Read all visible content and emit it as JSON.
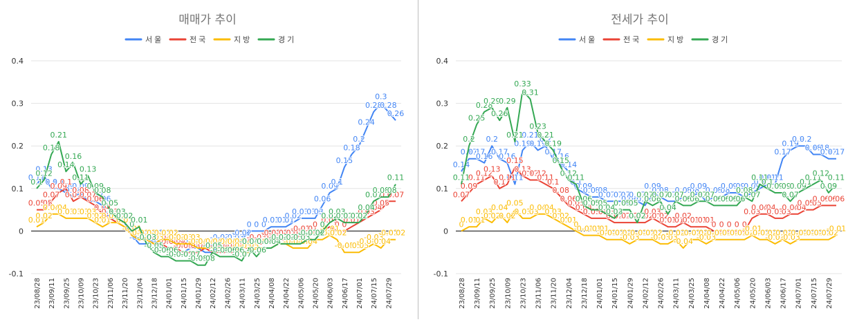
{
  "colors": {
    "seoul": "#4285F4",
    "national": "#EA4335",
    "regional": "#FBBC04",
    "gyeonggi": "#34A853",
    "grid": "#e3e3e3",
    "axis": "#333333",
    "title": "#757575"
  },
  "legend": {
    "seoul": "서울",
    "national": "전국",
    "regional": "지방",
    "gyeonggi": "경기"
  },
  "chart_data": [
    {
      "type": "line",
      "title": "매매가 추이",
      "ylim": [
        -0.1,
        0.4
      ],
      "yticks": [
        -0.1,
        0,
        0.1,
        0.2,
        0.3,
        0.4
      ],
      "x": [
        "23/08/28",
        "23/09/04",
        "23/09/11",
        "23/09/18",
        "23/09/25",
        "23/10/02",
        "23/10/09",
        "23/10/16",
        "23/10/23",
        "23/10/30",
        "23/11/06",
        "23/11/13",
        "23/11/20",
        "23/11/27",
        "23/12/04",
        "23/12/11",
        "23/12/18",
        "23/12/25",
        "24/01/01",
        "24/01/08",
        "24/01/15",
        "24/01/22",
        "24/01/29",
        "24/02/05",
        "24/02/12",
        "24/02/19",
        "24/02/26",
        "24/03/04",
        "24/03/11",
        "24/03/18",
        "24/03/25",
        "24/04/01",
        "24/04/08",
        "24/04/15",
        "24/04/22",
        "24/04/29",
        "24/05/06",
        "24/05/13",
        "24/05/20",
        "24/05/27",
        "24/06/03",
        "24/06/10",
        "24/06/17",
        "24/06/24",
        "24/07/01",
        "24/07/08",
        "24/07/15",
        "24/07/22",
        "24/07/29",
        "24/08/05"
      ],
      "xtick_labels": [
        "23/08/28",
        "23/09/11",
        "23/09/25",
        "23/10/09",
        "23/10/23",
        "23/11/06",
        "23/11/20",
        "23/12/04",
        "23/12/18",
        "24/01/01",
        "24/01/15",
        "24/01/29",
        "24/02/12",
        "24/02/26",
        "24/03/11",
        "24/03/25",
        "24/04/08",
        "24/04/22",
        "24/05/06",
        "24/05/20",
        "24/06/03",
        "24/06/17",
        "24/07/01",
        "24/07/15",
        "24/07/29"
      ],
      "series": [
        {
          "key": "seoul",
          "name": "서울",
          "values": [
            0.11,
            0.13,
            0.1,
            0.1,
            0.09,
            0.08,
            0.09,
            0.07,
            0.07,
            0.06,
            0.03,
            0.03,
            0.02,
            -0.01,
            -0.03,
            -0.03,
            -0.02,
            -0.04,
            -0.04,
            -0.04,
            -0.05,
            -0.04,
            -0.04,
            -0.05,
            -0.05,
            -0.03,
            -0.03,
            -0.03,
            -0.02,
            0,
            0,
            0,
            0.01,
            0.01,
            0.01,
            0.02,
            0.03,
            0.03,
            0.03,
            0.06,
            0.09,
            0.1,
            0.15,
            0.18,
            0.2,
            0.24,
            0.28,
            0.3,
            0.28,
            0.26
          ]
        },
        {
          "key": "national",
          "name": "전국",
          "values": [
            0.05,
            0.05,
            0.07,
            0.09,
            0.1,
            0.07,
            0.08,
            0.07,
            0.06,
            0.04,
            0.03,
            0.02,
            0.01,
            -0.01,
            -0.02,
            -0.02,
            -0.03,
            -0.03,
            -0.04,
            -0.04,
            -0.05,
            -0.05,
            -0.05,
            -0.04,
            -0.05,
            -0.05,
            -0.05,
            -0.05,
            -0.04,
            -0.04,
            -0.03,
            -0.03,
            -0.02,
            -0.02,
            -0.02,
            -0.02,
            -0.01,
            -0.01,
            0,
            0,
            0.01,
            0,
            0,
            0.01,
            0.02,
            0.03,
            0.04,
            0.05,
            0.07,
            0.07
          ]
        },
        {
          "key": "regional",
          "name": "지방",
          "values": [
            0.01,
            0.02,
            0.04,
            0.04,
            0.03,
            0.03,
            0.03,
            0.03,
            0.02,
            0.01,
            0.02,
            0.02,
            0.01,
            -0.01,
            -0.02,
            -0.02,
            -0.03,
            -0.02,
            -0.02,
            -0.03,
            -0.03,
            -0.03,
            -0.04,
            -0.04,
            -0.04,
            -0.04,
            -0.04,
            -0.04,
            -0.05,
            -0.05,
            -0.04,
            -0.04,
            -0.04,
            -0.03,
            -0.03,
            -0.04,
            -0.04,
            -0.04,
            -0.02,
            -0.02,
            -0.01,
            -0.02,
            -0.05,
            -0.05,
            -0.05,
            -0.04,
            -0.03,
            -0.04,
            -0.02,
            -0.02
          ]
        },
        {
          "key": "gyeonggi",
          "name": "경기",
          "values": [
            0.1,
            0.12,
            0.18,
            0.21,
            0.14,
            0.16,
            0.11,
            0.13,
            0.09,
            0.08,
            0.05,
            0.03,
            0.02,
            0,
            0.01,
            -0.03,
            -0.05,
            -0.06,
            -0.06,
            -0.07,
            -0.07,
            -0.07,
            -0.08,
            -0.08,
            -0.05,
            -0.06,
            -0.06,
            -0.06,
            -0.07,
            -0.04,
            -0.06,
            -0.04,
            -0.04,
            -0.03,
            -0.03,
            -0.03,
            -0.03,
            -0.02,
            -0.02,
            0,
            0.02,
            0.03,
            0.02,
            0.02,
            0.02,
            0.04,
            0.07,
            0.08,
            0.08,
            0.11
          ]
        }
      ]
    },
    {
      "type": "line",
      "title": "전세가 추이",
      "ylim": [
        -0.1,
        0.4
      ],
      "yticks": [
        -0.1,
        0,
        0.1,
        0.2,
        0.3,
        0.4
      ],
      "x": [
        "23/08/28",
        "23/09/04",
        "23/09/11",
        "23/09/18",
        "23/09/25",
        "23/10/02",
        "23/10/09",
        "23/10/16",
        "23/10/23",
        "23/10/30",
        "23/11/06",
        "23/11/13",
        "23/11/20",
        "23/11/27",
        "23/12/04",
        "23/12/11",
        "23/12/18",
        "23/12/25",
        "24/01/01",
        "24/01/08",
        "24/01/15",
        "24/01/22",
        "24/01/29",
        "24/02/05",
        "24/02/12",
        "24/02/19",
        "24/02/26",
        "24/03/04",
        "24/03/11",
        "24/03/18",
        "24/03/25",
        "24/04/01",
        "24/04/08",
        "24/04/15",
        "24/04/22",
        "24/04/29",
        "24/05/06",
        "24/05/13",
        "24/05/20",
        "24/05/27",
        "24/06/03",
        "24/06/10",
        "24/06/17",
        "24/06/24",
        "24/07/01",
        "24/07/08",
        "24/07/15",
        "24/07/22",
        "24/07/29",
        "24/08/05"
      ],
      "xtick_labels": [
        "23/08/28",
        "23/09/11",
        "23/09/25",
        "23/10/09",
        "23/10/23",
        "23/11/06",
        "23/11/20",
        "23/12/04",
        "23/12/18",
        "24/01/01",
        "24/01/15",
        "24/01/29",
        "24/02/12",
        "24/02/26",
        "24/03/11",
        "24/03/25",
        "24/04/08",
        "24/04/22",
        "24/05/06",
        "24/05/20",
        "24/06/03",
        "24/06/17",
        "24/07/01",
        "24/07/15",
        "24/07/29"
      ],
      "series": [
        {
          "key": "seoul",
          "name": "서울",
          "values": [
            0.14,
            0.17,
            0.17,
            0.16,
            0.2,
            0.17,
            0.16,
            0.11,
            0.19,
            0.21,
            0.19,
            0.2,
            0.17,
            0.16,
            0.14,
            0.1,
            0.09,
            0.08,
            0.08,
            0.07,
            0.07,
            0.07,
            0.06,
            0.07,
            0.06,
            0.09,
            0.08,
            0.07,
            0.07,
            0.08,
            0.08,
            0.09,
            0.07,
            0.08,
            0.08,
            0.09,
            0.09,
            0.08,
            0.09,
            0.1,
            0.11,
            0.11,
            0.17,
            0.19,
            0.2,
            0.2,
            0.18,
            0.18,
            0.17,
            0.17
          ]
        },
        {
          "key": "national",
          "name": "전국",
          "values": [
            0.07,
            0.09,
            0.11,
            0.12,
            0.13,
            0.1,
            0.11,
            0.15,
            0.13,
            0.12,
            0.12,
            0.11,
            0.1,
            0.08,
            0.06,
            0.05,
            0.04,
            0.03,
            0.03,
            0.03,
            0.02,
            0.02,
            0.02,
            0.02,
            0.02,
            0.03,
            0.02,
            0.01,
            0.01,
            0.02,
            0.01,
            0.01,
            0.01,
            0,
            0,
            0,
            0,
            0,
            0.03,
            0.04,
            0.04,
            0.03,
            0.03,
            0.04,
            0.04,
            0.05,
            0.05,
            0.06,
            0.06,
            0.06
          ]
        },
        {
          "key": "regional",
          "name": "지방",
          "values": [
            0,
            0.01,
            0.01,
            0.03,
            0.02,
            0.04,
            0.02,
            0.05,
            0.03,
            0.03,
            0.04,
            0.04,
            0.03,
            0.02,
            0.01,
            0,
            -0.01,
            -0.01,
            -0.01,
            -0.02,
            -0.02,
            -0.02,
            -0.03,
            -0.02,
            -0.02,
            -0.02,
            -0.03,
            -0.03,
            -0.02,
            -0.04,
            -0.02,
            -0.02,
            -0.03,
            -0.02,
            -0.02,
            -0.02,
            -0.02,
            -0.02,
            -0.01,
            -0.02,
            -0.02,
            -0.03,
            -0.02,
            -0.03,
            -0.02,
            -0.02,
            -0.02,
            -0.02,
            -0.02,
            -0.01
          ]
        },
        {
          "key": "gyeonggi",
          "name": "경기",
          "values": [
            0.11,
            0.2,
            0.25,
            0.28,
            0.29,
            0.26,
            0.29,
            0.21,
            0.33,
            0.31,
            0.23,
            0.21,
            0.19,
            0.15,
            0.12,
            0.11,
            0.06,
            0.05,
            0.05,
            0.04,
            0.03,
            0.05,
            0.05,
            0.02,
            0.07,
            0.06,
            0.07,
            0.04,
            0.07,
            0.06,
            0.06,
            0.07,
            0.07,
            0.06,
            0.06,
            0.06,
            0.06,
            0.08,
            0.07,
            0.11,
            0.1,
            0.09,
            0.09,
            0.07,
            0.09,
            0.1,
            0.11,
            0.12,
            0.09,
            0.11
          ]
        }
      ]
    }
  ]
}
